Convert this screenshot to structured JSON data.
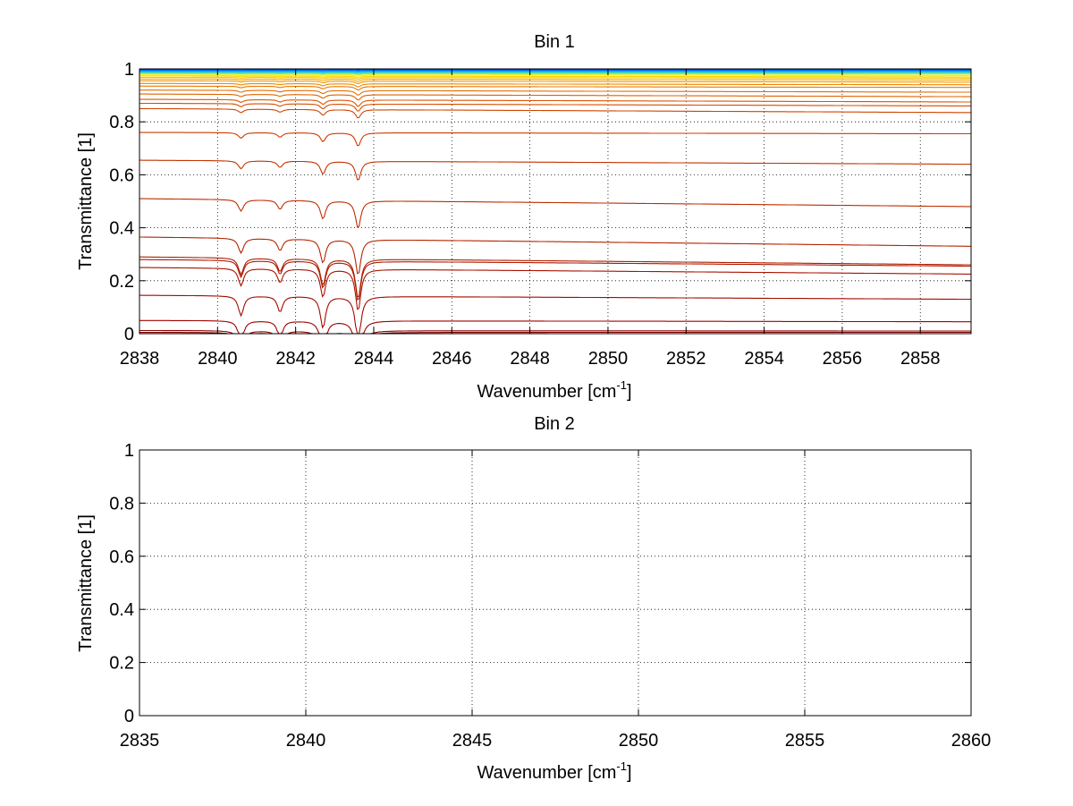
{
  "chart_data": [
    {
      "type": "line",
      "title": "Bin 1",
      "xlabel": "Wavenumber [cm",
      "xlabel_sup": "-1",
      "xlabel_tail": "]",
      "ylabel": "Transmittance [1]",
      "xlim": [
        2838,
        2859.3
      ],
      "ylim": [
        0,
        1
      ],
      "xticks": [
        2838,
        2840,
        2842,
        2844,
        2846,
        2848,
        2850,
        2852,
        2854,
        2856,
        2858
      ],
      "yticks": [
        0,
        0.2,
        0.4,
        0.6,
        0.8,
        1
      ],
      "ytick_labels": [
        "0",
        "0.2",
        "0.4",
        "0.6",
        "0.8",
        "1"
      ],
      "grid": true,
      "absorption_lines": [
        2840.6,
        2841.6,
        2842.7,
        2843.6
      ],
      "line_depth": [
        0.25,
        0.2,
        0.4,
        0.6
      ],
      "series": [
        {
          "color": "#7f0000",
          "start": 0.005,
          "end": 0.005
        },
        {
          "color": "#8f0000",
          "start": 0.012,
          "end": 0.01
        },
        {
          "color": "#a00000",
          "start": 0.05,
          "end": 0.045
        },
        {
          "color": "#a30a00",
          "start": 0.145,
          "end": 0.13
        },
        {
          "color": "#a81200",
          "start": 0.25,
          "end": 0.225
        },
        {
          "color": "#ad1a00",
          "start": 0.28,
          "end": 0.255
        },
        {
          "color": "#b01e00",
          "start": 0.29,
          "end": 0.26
        },
        {
          "color": "#b42400",
          "start": 0.365,
          "end": 0.33
        },
        {
          "color": "#bd2e00",
          "start": 0.51,
          "end": 0.48
        },
        {
          "color": "#c43400",
          "start": 0.655,
          "end": 0.64
        },
        {
          "color": "#cb3c00",
          "start": 0.76,
          "end": 0.755
        },
        {
          "color": "#d24400",
          "start": 0.85,
          "end": 0.835
        },
        {
          "color": "#d84c00",
          "start": 0.87,
          "end": 0.86
        },
        {
          "color": "#dc5600",
          "start": 0.885,
          "end": 0.875
        },
        {
          "color": "#e06200",
          "start": 0.905,
          "end": 0.895
        },
        {
          "color": "#e46e00",
          "start": 0.92,
          "end": 0.912
        },
        {
          "color": "#e87a00",
          "start": 0.935,
          "end": 0.93
        },
        {
          "color": "#ec8800",
          "start": 0.945,
          "end": 0.94
        },
        {
          "color": "#f09600",
          "start": 0.955,
          "end": 0.95
        },
        {
          "color": "#f4a600",
          "start": 0.962,
          "end": 0.958
        },
        {
          "color": "#f8c000",
          "start": 0.968,
          "end": 0.965
        },
        {
          "color": "#fcd800",
          "start": 0.973,
          "end": 0.97
        },
        {
          "color": "#ffee00",
          "start": 0.977,
          "end": 0.975
        },
        {
          "color": "#c8f040",
          "start": 0.981,
          "end": 0.98
        },
        {
          "color": "#80e080",
          "start": 0.984,
          "end": 0.983
        },
        {
          "color": "#40d0c0",
          "start": 0.987,
          "end": 0.986
        },
        {
          "color": "#00c0ff",
          "start": 0.99,
          "end": 0.99
        },
        {
          "color": "#0090ff",
          "start": 0.993,
          "end": 0.993
        },
        {
          "color": "#0060ff",
          "start": 0.996,
          "end": 0.996
        },
        {
          "color": "#0020d0",
          "start": 0.999,
          "end": 0.999
        }
      ]
    },
    {
      "type": "line",
      "title": "Bin 2",
      "xlabel": "Wavenumber [cm",
      "xlabel_sup": "-1",
      "xlabel_tail": "]",
      "ylabel": "Transmittance [1]",
      "xlim": [
        2835,
        2860
      ],
      "ylim": [
        0,
        1
      ],
      "xticks": [
        2835,
        2840,
        2845,
        2850,
        2855,
        2860
      ],
      "yticks": [
        0,
        0.2,
        0.4,
        0.6,
        0.8,
        1
      ],
      "ytick_labels": [
        "0",
        "0.2",
        "0.4",
        "0.6",
        "0.8",
        "1"
      ],
      "grid": true,
      "series": []
    }
  ]
}
